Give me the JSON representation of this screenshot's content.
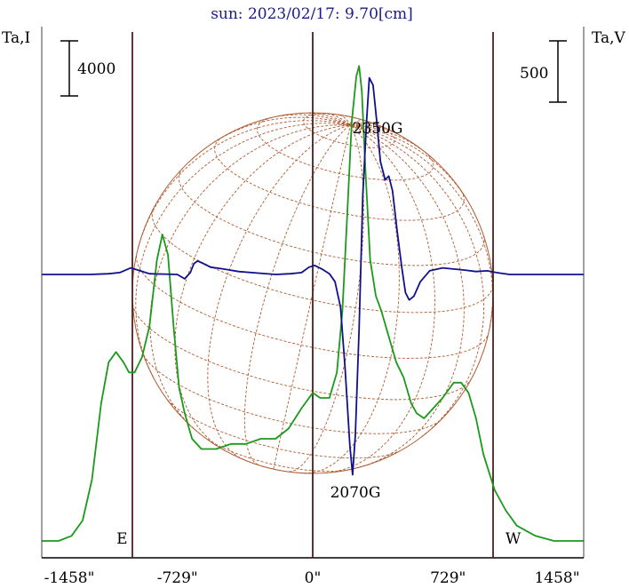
{
  "chart_data": {
    "type": "line",
    "title": "sun: 2023/02/17: 9.70[cm]",
    "left_axis_label": "Ta,I",
    "right_axis_label": "Ta,V",
    "left_scale_bar": "4000",
    "right_scale_bar": "500",
    "x_unit": "arcsec",
    "xlim": [
      -1458,
      1458
    ],
    "x_ticks": [
      {
        "value": -1458,
        "label": "-1458\""
      },
      {
        "value": -729,
        "label": "-729\""
      },
      {
        "value": 0,
        "label": "0\""
      },
      {
        "value": 729,
        "label": "729\""
      },
      {
        "value": 1458,
        "label": "1458\""
      }
    ],
    "vertical_markers": [
      -972,
      0,
      972
    ],
    "annotations": [
      {
        "text": "2350G",
        "x": 350
      },
      {
        "text": "2070G",
        "x": 230
      },
      {
        "text": "E",
        "x": -1028
      },
      {
        "text": "W",
        "x": 1080
      }
    ],
    "solar_disk": {
      "center_x": 0,
      "radius_arcsec": 972
    },
    "colors": {
      "intensity": "#1a9a1a",
      "polarization": "#10108a",
      "disk": "#b05a30",
      "marker": "#4a2020",
      "title": "#1a1a8c"
    },
    "series": [
      {
        "name": "I",
        "color": "#1a9a1a",
        "points": [
          [
            -1458,
            0.0
          ],
          [
            -1370,
            0.0
          ],
          [
            -1300,
            0.01
          ],
          [
            -1240,
            0.04
          ],
          [
            -1190,
            0.12
          ],
          [
            -1140,
            0.27
          ],
          [
            -1100,
            0.35
          ],
          [
            -1060,
            0.37
          ],
          [
            -1020,
            0.35
          ],
          [
            -990,
            0.33
          ],
          [
            -960,
            0.33
          ],
          [
            -920,
            0.36
          ],
          [
            -880,
            0.42
          ],
          [
            -840,
            0.55
          ],
          [
            -810,
            0.6
          ],
          [
            -780,
            0.56
          ],
          [
            -750,
            0.42
          ],
          [
            -720,
            0.3
          ],
          [
            -690,
            0.25
          ],
          [
            -650,
            0.2
          ],
          [
            -600,
            0.18
          ],
          [
            -520,
            0.18
          ],
          [
            -440,
            0.19
          ],
          [
            -360,
            0.19
          ],
          [
            -280,
            0.2
          ],
          [
            -200,
            0.2
          ],
          [
            -130,
            0.22
          ],
          [
            -60,
            0.26
          ],
          [
            0,
            0.29
          ],
          [
            40,
            0.28
          ],
          [
            90,
            0.28
          ],
          [
            130,
            0.33
          ],
          [
            160,
            0.45
          ],
          [
            185,
            0.63
          ],
          [
            210,
            0.82
          ],
          [
            235,
            0.91
          ],
          [
            250,
            0.93
          ],
          [
            265,
            0.88
          ],
          [
            285,
            0.72
          ],
          [
            310,
            0.55
          ],
          [
            340,
            0.48
          ],
          [
            370,
            0.45
          ],
          [
            410,
            0.4
          ],
          [
            450,
            0.35
          ],
          [
            490,
            0.32
          ],
          [
            530,
            0.27
          ],
          [
            560,
            0.25
          ],
          [
            600,
            0.24
          ],
          [
            650,
            0.26
          ],
          [
            700,
            0.28
          ],
          [
            760,
            0.31
          ],
          [
            800,
            0.31
          ],
          [
            840,
            0.29
          ],
          [
            880,
            0.24
          ],
          [
            920,
            0.17
          ],
          [
            980,
            0.1
          ],
          [
            1040,
            0.06
          ],
          [
            1100,
            0.03
          ],
          [
            1200,
            0.01
          ],
          [
            1300,
            0.0
          ],
          [
            1458,
            0.0
          ]
        ]
      },
      {
        "name": "V",
        "color": "#10108a",
        "points": [
          [
            -1458,
            0.0
          ],
          [
            -1200,
            0.0
          ],
          [
            -1100,
            0.002
          ],
          [
            -1040,
            0.005
          ],
          [
            -980,
            0.018
          ],
          [
            -930,
            0.01
          ],
          [
            -880,
            0.002
          ],
          [
            -800,
            0.001
          ],
          [
            -730,
            0.0
          ],
          [
            -690,
            -0.012
          ],
          [
            -660,
            0.005
          ],
          [
            -640,
            0.03
          ],
          [
            -620,
            0.037
          ],
          [
            -590,
            0.03
          ],
          [
            -550,
            0.02
          ],
          [
            -480,
            0.015
          ],
          [
            -400,
            0.008
          ],
          [
            -300,
            0.004
          ],
          [
            -200,
            0.0
          ],
          [
            -120,
            0.002
          ],
          [
            -60,
            0.005
          ],
          [
            -20,
            0.02
          ],
          [
            10,
            0.025
          ],
          [
            50,
            0.015
          ],
          [
            90,
            0.002
          ],
          [
            120,
            -0.02
          ],
          [
            150,
            -0.09
          ],
          [
            175,
            -0.26
          ],
          [
            200,
            -0.47
          ],
          [
            215,
            -0.55
          ],
          [
            230,
            -0.44
          ],
          [
            250,
            -0.15
          ],
          [
            270,
            0.22
          ],
          [
            290,
            0.42
          ],
          [
            305,
            0.54
          ],
          [
            325,
            0.52
          ],
          [
            345,
            0.42
          ],
          [
            365,
            0.31
          ],
          [
            390,
            0.26
          ],
          [
            410,
            0.27
          ],
          [
            430,
            0.23
          ],
          [
            455,
            0.12
          ],
          [
            480,
            0.02
          ],
          [
            500,
            -0.05
          ],
          [
            520,
            -0.07
          ],
          [
            545,
            -0.06
          ],
          [
            580,
            -0.02
          ],
          [
            630,
            0.01
          ],
          [
            700,
            0.018
          ],
          [
            760,
            0.015
          ],
          [
            820,
            0.012
          ],
          [
            880,
            0.008
          ],
          [
            940,
            0.01
          ],
          [
            990,
            0.005
          ],
          [
            1060,
            0.0
          ],
          [
            1458,
            0.0
          ]
        ]
      }
    ]
  }
}
